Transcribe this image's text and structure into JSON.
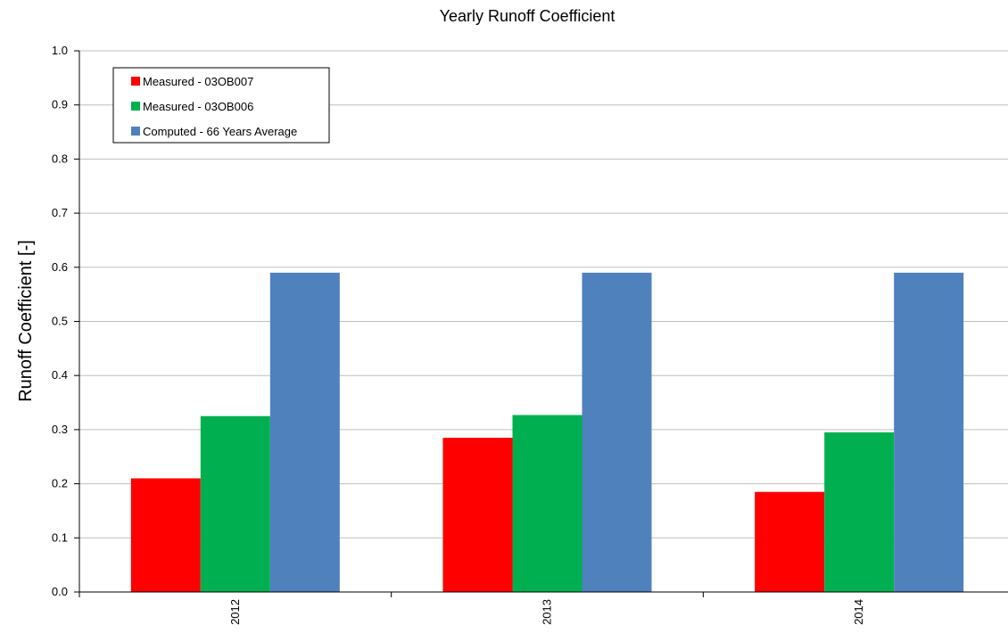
{
  "chart_data": {
    "type": "bar",
    "title": "Yearly Runoff Coefficient",
    "xlabel": "",
    "ylabel": "Runoff Coefficient [-]",
    "ylim": [
      0,
      1.0
    ],
    "yticks": [
      "0.0",
      "0.1",
      "0.2",
      "0.3",
      "0.4",
      "0.5",
      "0.6",
      "0.7",
      "0.8",
      "0.9",
      "1.0"
    ],
    "categories": [
      "2012",
      "2013",
      "2014"
    ],
    "grid": true,
    "legend_position": "top-left",
    "series": [
      {
        "name": "Measured - 03OB007",
        "color": "#ff0000",
        "values": [
          0.21,
          0.285,
          0.185
        ]
      },
      {
        "name": "Measured - 03OB006",
        "color": "#00b050",
        "values": [
          0.325,
          0.327,
          0.295
        ]
      },
      {
        "name": "Computed - 66 Years Average",
        "color": "#4f81bd",
        "values": [
          0.59,
          0.59,
          0.59
        ]
      }
    ]
  }
}
